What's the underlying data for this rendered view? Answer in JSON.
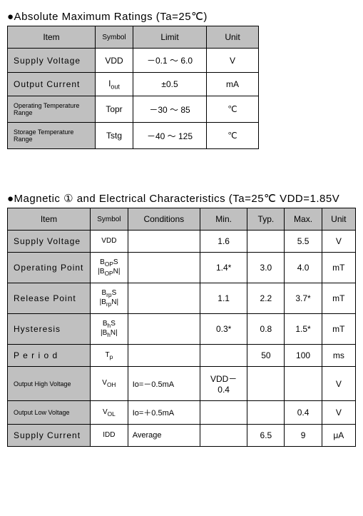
{
  "section1": {
    "title": "●Absolute Maximum Ratings (Ta=25℃)",
    "headers": {
      "item": "Item",
      "symbol": "Symbol",
      "limit": "Limit",
      "unit": "Unit"
    },
    "rows": [
      {
        "item": "Supply Voltage",
        "symbol": "VDD",
        "limit": "－0.1 ～ 6.0",
        "unit": "V",
        "small": false
      },
      {
        "item": "Output Current",
        "symbol": "I",
        "symbol_sub": "out",
        "limit": "±0.5",
        "unit": "mA",
        "small": false
      },
      {
        "item": "Operating Temperature Range",
        "symbol": "Topr",
        "limit": "－30 ～ 85",
        "unit": "℃",
        "small": true
      },
      {
        "item": "Storage Temperature Range",
        "symbol": "Tstg",
        "limit": "－40 ～ 125",
        "unit": "℃",
        "small": true
      }
    ]
  },
  "section2": {
    "title": "●Magnetic ① and Electrical Characteristics (Ta=25℃ VDD=1.85V",
    "headers": {
      "item": "Item",
      "symbol": "Symbol",
      "cond": "Conditions",
      "min": "Min.",
      "typ": "Typ.",
      "max": "Max.",
      "unit": "Unit"
    },
    "rows": [
      {
        "item": "Supply Voltage",
        "symbol_html": "VDD",
        "cond": "",
        "min": "1.6",
        "typ": "",
        "max": "5.5",
        "unit": "V"
      },
      {
        "item": "Operating Point",
        "symbol_html": "B<sub>OP</sub>S<br>|B<sub>OP</sub>N|",
        "cond": "",
        "min": "1.4*",
        "typ": "3.0",
        "max": "4.0",
        "unit": "mT"
      },
      {
        "item": "Release Point",
        "symbol_html": "B<sub>rp</sub>S<br>|B<sub>rp</sub>N|",
        "cond": "",
        "min": "1.1",
        "typ": "2.2",
        "max": "3.7*",
        "unit": "mT"
      },
      {
        "item": "Hysteresis",
        "symbol_html": "B<sub>h</sub>S<br>|B<sub>h</sub>N|",
        "cond": "",
        "min": "0.3*",
        "typ": "0.8",
        "max": "1.5*",
        "unit": "mT"
      },
      {
        "item": "P e r i o d",
        "symbol_html": "T<sub>p</sub>",
        "cond": "",
        "min": "",
        "typ": "50",
        "max": "100",
        "unit": "ms",
        "spaced": true
      },
      {
        "item": "Output High Voltage",
        "symbol_html": "V<sub>OH</sub>",
        "cond": "Io=－0.5mA",
        "min": "VDD－0.4",
        "typ": "",
        "max": "",
        "unit": "V",
        "small": true
      },
      {
        "item": "Output Low Voltage",
        "symbol_html": "V<sub>OL</sub>",
        "cond": "Io=＋0.5mA",
        "min": "",
        "typ": "",
        "max": "0.4",
        "unit": "V",
        "small": true
      },
      {
        "item": "Supply Current",
        "symbol_html": "IDD",
        "cond": "Average",
        "min": "",
        "typ": "6.5",
        "max": "9",
        "unit": "μA"
      }
    ]
  }
}
